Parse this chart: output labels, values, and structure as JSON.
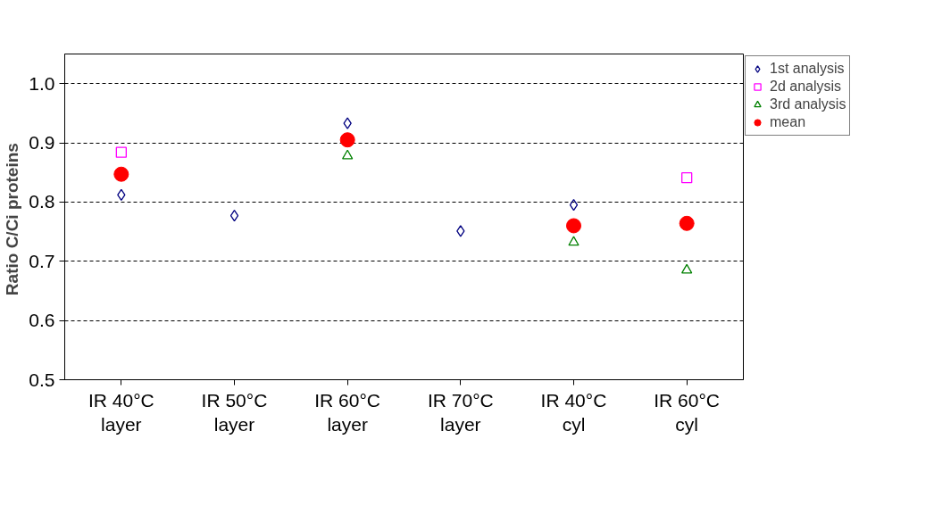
{
  "chart_data": {
    "type": "scatter",
    "ylabel": "Ratio C/Ci  proteins",
    "categories": [
      "IR 40°C layer",
      "IR 50°C layer",
      "IR 60°C layer",
      "IR 70°C layer",
      "IR 40°C cyl",
      "IR 60°C cyl"
    ],
    "series": [
      {
        "name": "1st analysis",
        "color": "#000080",
        "marker": "diamond",
        "values": [
          0.812,
          0.777,
          0.933,
          0.751,
          0.795,
          null
        ]
      },
      {
        "name": "2d analysis",
        "color": "#ff00ff",
        "marker": "square",
        "values": [
          0.884,
          null,
          null,
          null,
          null,
          0.841
        ]
      },
      {
        "name": "3rd analysis",
        "color": "#008000",
        "marker": "triangle",
        "values": [
          null,
          null,
          0.878,
          null,
          0.732,
          0.685
        ]
      },
      {
        "name": "mean",
        "color": "#ff0000",
        "marker": "circle",
        "values": [
          0.847,
          null,
          0.905,
          null,
          0.76,
          0.764
        ]
      }
    ],
    "ylim": [
      0.5,
      1.05
    ],
    "yticks": [
      {
        "value": 0.5,
        "label": "0.5"
      },
      {
        "value": 0.6,
        "label": "0.6"
      },
      {
        "value": 0.7,
        "label": "0.7"
      },
      {
        "value": 0.8,
        "label": "0.8"
      },
      {
        "value": 0.9,
        "label": "0.9"
      },
      {
        "value": 1.0,
        "label": "1.0"
      }
    ],
    "grid": "y",
    "legend": "top right"
  }
}
